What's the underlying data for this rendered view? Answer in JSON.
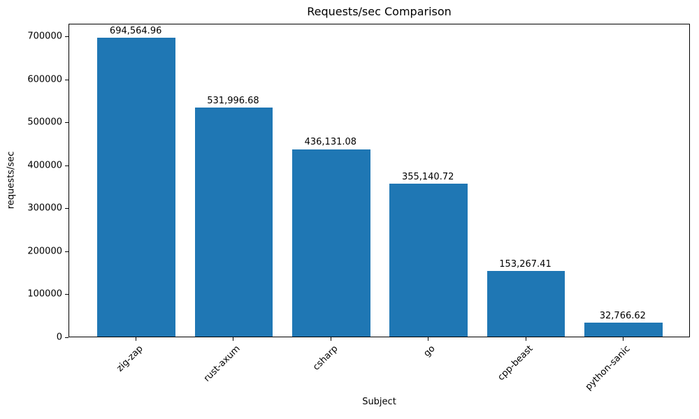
{
  "chart_data": {
    "type": "bar",
    "title": "Requests/sec Comparison",
    "xlabel": "Subject",
    "ylabel": "requests/sec",
    "categories": [
      "zig-zap",
      "rust-axum",
      "csharp",
      "go",
      "cpp-beast",
      "python-sanic"
    ],
    "values": [
      694564.96,
      531996.68,
      436131.08,
      355140.72,
      153267.41,
      32766.62
    ],
    "value_labels": [
      "694,564.96",
      "531,996.68",
      "436,131.08",
      "355,140.72",
      "153,267.41",
      "32,766.62"
    ],
    "yticks": [
      0,
      100000,
      200000,
      300000,
      400000,
      500000,
      600000,
      700000
    ],
    "ylim": [
      0,
      729293
    ],
    "bar_color": "#1f77b4",
    "grid": false,
    "legend": null
  }
}
